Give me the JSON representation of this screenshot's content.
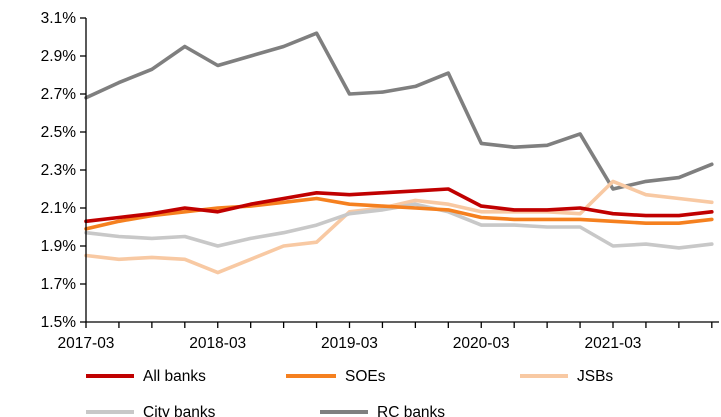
{
  "chart_data": {
    "type": "line",
    "title": "",
    "xlabel": "",
    "ylabel": "",
    "ylim": [
      1.5,
      3.1
    ],
    "y_ticks": [
      "1.5%",
      "1.7%",
      "1.9%",
      "2.1%",
      "2.3%",
      "2.5%",
      "2.7%",
      "2.9%",
      "3.1%"
    ],
    "x_ticks": [
      "2017-03",
      "2018-03",
      "2019-03",
      "2020-03",
      "2021-03"
    ],
    "x": [
      "2017-03",
      "2017-06",
      "2017-09",
      "2017-12",
      "2018-03",
      "2018-06",
      "2018-09",
      "2018-12",
      "2019-03",
      "2019-06",
      "2019-09",
      "2019-12",
      "2020-03",
      "2020-06",
      "2020-09",
      "2020-12",
      "2021-03",
      "2021-06",
      "2021-09",
      "2021-12"
    ],
    "grid": false,
    "legend_position": "bottom",
    "series": [
      {
        "name": "All banks",
        "color": "#c00000",
        "values": [
          2.03,
          2.05,
          2.07,
          2.1,
          2.08,
          2.12,
          2.15,
          2.18,
          2.17,
          2.18,
          2.19,
          2.2,
          2.11,
          2.09,
          2.09,
          2.1,
          2.07,
          2.06,
          2.06,
          2.08
        ]
      },
      {
        "name": "SOEs",
        "color": "#f5801f",
        "values": [
          1.99,
          2.03,
          2.06,
          2.08,
          2.1,
          2.11,
          2.13,
          2.15,
          2.12,
          2.11,
          2.1,
          2.09,
          2.05,
          2.04,
          2.04,
          2.04,
          2.03,
          2.02,
          2.02,
          2.04
        ]
      },
      {
        "name": "JSBs",
        "color": "#f8c9a3",
        "values": [
          1.85,
          1.83,
          1.84,
          1.83,
          1.76,
          1.83,
          1.9,
          1.92,
          2.08,
          2.1,
          2.14,
          2.12,
          2.08,
          2.08,
          2.08,
          2.07,
          2.24,
          2.17,
          2.15,
          2.13
        ]
      },
      {
        "name": "City banks",
        "color": "#c8c8c8",
        "values": [
          1.97,
          1.95,
          1.94,
          1.95,
          1.9,
          1.94,
          1.97,
          2.01,
          2.07,
          2.09,
          2.12,
          2.08,
          2.01,
          2.01,
          2.0,
          2.0,
          1.9,
          1.91,
          1.89,
          1.91
        ]
      },
      {
        "name": "RC banks",
        "color": "#7f7f7f",
        "values": [
          2.68,
          2.76,
          2.83,
          2.95,
          2.85,
          2.9,
          2.95,
          3.02,
          2.7,
          2.71,
          2.74,
          2.81,
          2.44,
          2.42,
          2.43,
          2.49,
          2.2,
          2.24,
          2.26,
          2.33
        ]
      }
    ]
  }
}
